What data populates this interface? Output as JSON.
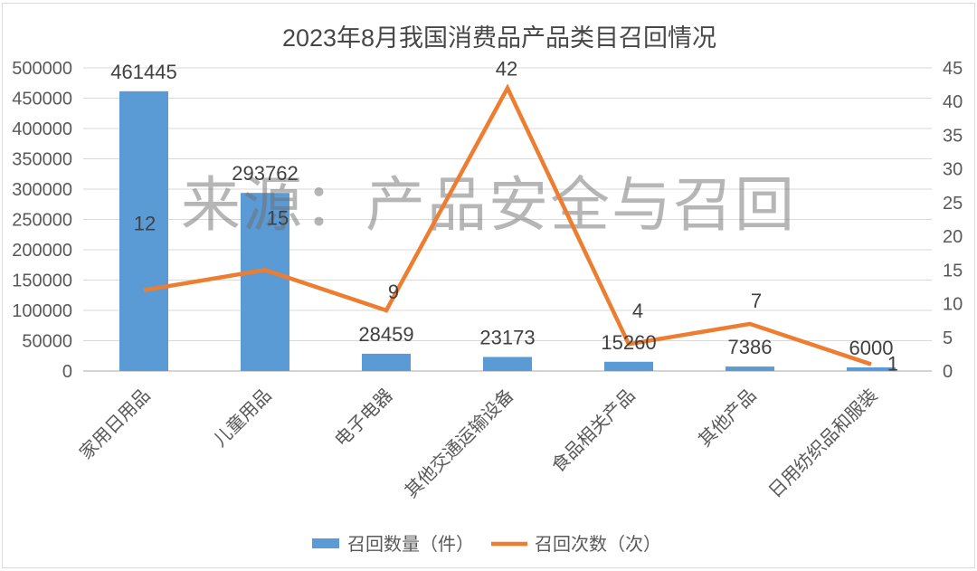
{
  "title": "2023年8月我国消费品产品类目召回情况",
  "watermark": "来源：产品安全与召回",
  "legend": {
    "bar_label": "召回数量（件）",
    "line_label": "召回次数（次）"
  },
  "colors": {
    "bar": "#5B9BD5",
    "line": "#ED7D31",
    "grid": "#D9D9D9",
    "baseline": "#C6C6C6",
    "axis_text": "#595959",
    "label_text": "#404040",
    "title_text": "#474747",
    "watermark_text": "#6F6F6F",
    "border": "#D9D9D9"
  },
  "chart_data": {
    "type": "combo",
    "title": "2023年8月我国消费品产品类目召回情况",
    "categories": [
      "家用日用品",
      "儿童用品",
      "电子电器",
      "其他交通运输设备",
      "食品相关产品",
      "其他产品",
      "日用纺织品和服装"
    ],
    "series": [
      {
        "name": "召回数量（件）",
        "type": "bar",
        "axis": "left",
        "color": "#5B9BD5",
        "values": [
          461445,
          293762,
          28459,
          23173,
          15260,
          7386,
          6000
        ],
        "data_labels": [
          "461445",
          "293762",
          "28459",
          "23173",
          "15260",
          "7386",
          "6000"
        ]
      },
      {
        "name": "召回次数（次）",
        "type": "line",
        "axis": "right",
        "color": "#ED7D31",
        "values": [
          12,
          15,
          9,
          42,
          4,
          7,
          1
        ],
        "data_labels": [
          "12",
          "15",
          "9",
          "42",
          "4",
          "7",
          "1"
        ]
      }
    ],
    "left_axis": {
      "label": "",
      "min": 0,
      "max": 500000,
      "tick_step": 50000,
      "ticks": [
        0,
        50000,
        100000,
        150000,
        200000,
        250000,
        300000,
        350000,
        400000,
        450000,
        500000
      ]
    },
    "right_axis": {
      "label": "",
      "min": 0,
      "max": 45,
      "tick_step": 5,
      "ticks": [
        0,
        5,
        10,
        15,
        20,
        25,
        30,
        35,
        40,
        45
      ]
    },
    "grid": true,
    "data_labels": true,
    "legend_position": "bottom"
  }
}
